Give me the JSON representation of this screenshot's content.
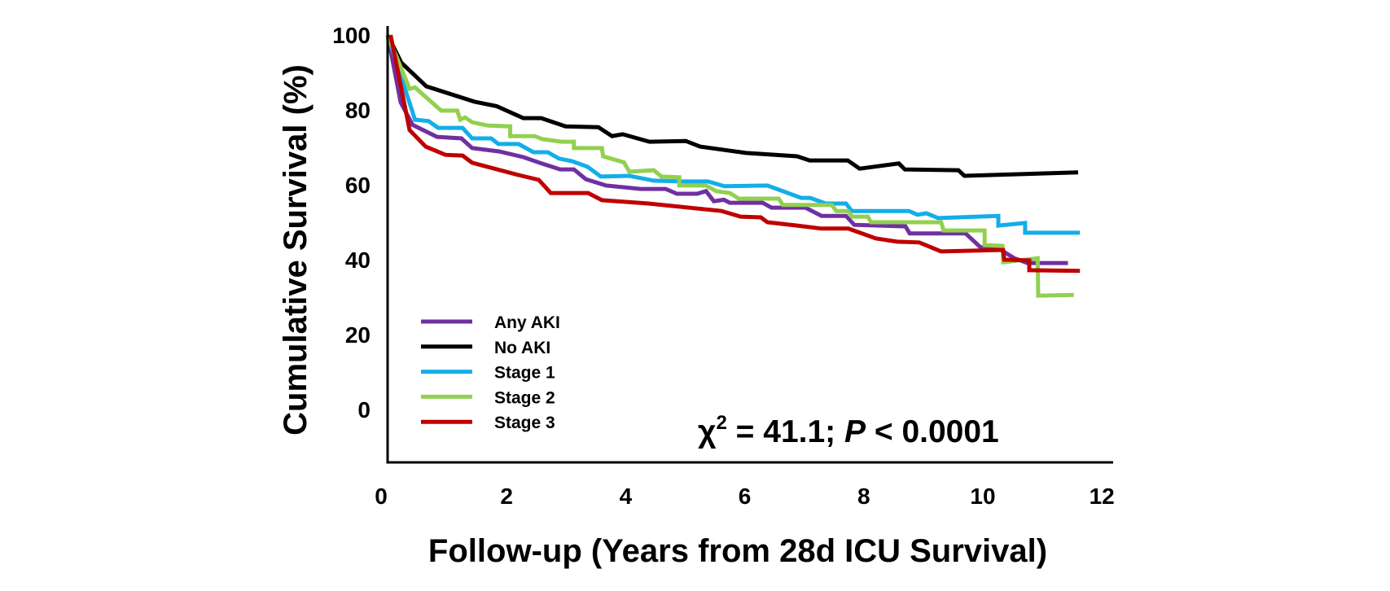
{
  "chart_data": {
    "type": "line",
    "title": "",
    "xlabel": "Follow-up (Years from 28d ICU Survival)",
    "ylabel": "Cumulative Survival (%)",
    "xlim": [
      0,
      12.2
    ],
    "ylim": [
      -14,
      102
    ],
    "x_ticks": [
      0,
      2,
      4,
      6,
      8,
      10,
      12
    ],
    "x_tick_labels": [
      "0",
      "2",
      "4",
      "6",
      "8",
      "10",
      "12"
    ],
    "y_ticks": [
      0,
      20,
      40,
      60,
      80,
      100
    ],
    "y_tick_labels": [
      "0",
      "20",
      "40",
      "60",
      "80",
      "100"
    ],
    "grid": false,
    "legend_position": "bottom-left",
    "annotation": {
      "chi_symbol": "χ",
      "superscript": "2",
      "stat_text": " = 41.1; ",
      "p_symbol": "P",
      "p_text": " < 0.0001"
    },
    "series": [
      {
        "name": "Any AKI",
        "color": "#7030a0",
        "points": [
          [
            0.0,
            100
          ],
          [
            0.22,
            82
          ],
          [
            0.42,
            76
          ],
          [
            0.83,
            72.8
          ],
          [
            1.24,
            72.4
          ],
          [
            1.42,
            69.8
          ],
          [
            1.88,
            68.9
          ],
          [
            2.28,
            67.4
          ],
          [
            2.55,
            65.9
          ],
          [
            2.9,
            64.1
          ],
          [
            3.13,
            64.1
          ],
          [
            3.33,
            61.5
          ],
          [
            3.67,
            59.8
          ],
          [
            4.25,
            58.9
          ],
          [
            4.67,
            58.9
          ],
          [
            4.86,
            57.6
          ],
          [
            5.2,
            57.6
          ],
          [
            5.35,
            58.3
          ],
          [
            5.48,
            55.6
          ],
          [
            5.65,
            56
          ],
          [
            5.75,
            55.2
          ],
          [
            6.3,
            55.2
          ],
          [
            6.45,
            53.9
          ],
          [
            7.02,
            53.9
          ],
          [
            7.29,
            51.7
          ],
          [
            7.7,
            51.7
          ],
          [
            7.84,
            49.3
          ],
          [
            8.7,
            48.9
          ],
          [
            8.77,
            47
          ],
          [
            9.71,
            47
          ],
          [
            9.96,
            43.3
          ],
          [
            10.23,
            43.3
          ],
          [
            10.53,
            40.4
          ],
          [
            10.75,
            39.1
          ],
          [
            11.43,
            39.1
          ]
        ]
      },
      {
        "name": "No AKI",
        "color": "#000000",
        "points": [
          [
            0.0,
            100
          ],
          [
            0.23,
            92.6
          ],
          [
            0.65,
            86.3
          ],
          [
            1.46,
            82.2
          ],
          [
            1.83,
            81
          ],
          [
            2.28,
            77.8
          ],
          [
            2.58,
            77.8
          ],
          [
            2.99,
            75.6
          ],
          [
            3.54,
            75.4
          ],
          [
            3.77,
            73
          ],
          [
            3.95,
            73.5
          ],
          [
            4.4,
            71.5
          ],
          [
            5.01,
            71.7
          ],
          [
            5.25,
            70.2
          ],
          [
            6.02,
            68.5
          ],
          [
            6.88,
            67.6
          ],
          [
            7.09,
            66.5
          ],
          [
            7.73,
            66.5
          ],
          [
            7.93,
            64.3
          ],
          [
            8.59,
            65.7
          ],
          [
            8.69,
            64.1
          ],
          [
            9.59,
            63.9
          ],
          [
            9.69,
            62.4
          ],
          [
            11.6,
            63.3
          ]
        ]
      },
      {
        "name": "Stage 1",
        "color": "#13aee8",
        "points": [
          [
            0.0,
            100
          ],
          [
            0.46,
            77.4
          ],
          [
            0.69,
            77
          ],
          [
            0.85,
            75.2
          ],
          [
            1.26,
            75.2
          ],
          [
            1.42,
            72.4
          ],
          [
            1.74,
            72.4
          ],
          [
            1.86,
            70.9
          ],
          [
            2.2,
            70.9
          ],
          [
            2.45,
            68.7
          ],
          [
            2.69,
            68.7
          ],
          [
            2.88,
            67
          ],
          [
            3.1,
            66.3
          ],
          [
            3.36,
            64.8
          ],
          [
            3.58,
            62.2
          ],
          [
            4.06,
            62.4
          ],
          [
            4.47,
            61.1
          ],
          [
            4.93,
            60.9
          ],
          [
            5.38,
            60.9
          ],
          [
            5.66,
            59.6
          ],
          [
            6.38,
            59.8
          ],
          [
            6.95,
            56.5
          ],
          [
            7.1,
            56.5
          ],
          [
            7.36,
            55
          ],
          [
            7.7,
            55
          ],
          [
            7.8,
            53
          ],
          [
            8.76,
            53
          ],
          [
            8.9,
            52
          ],
          [
            9.05,
            52.4
          ],
          [
            9.25,
            51.1
          ],
          [
            10.26,
            51.7
          ],
          [
            10.26,
            49.1
          ],
          [
            10.71,
            49.8
          ],
          [
            10.71,
            47.2
          ],
          [
            11.63,
            47.2
          ]
        ]
      },
      {
        "name": "Stage 2",
        "color": "#92d050",
        "points": [
          [
            0.0,
            100
          ],
          [
            0.37,
            85.6
          ],
          [
            0.46,
            86
          ],
          [
            0.9,
            79.8
          ],
          [
            1.17,
            79.8
          ],
          [
            1.22,
            77.4
          ],
          [
            1.3,
            78
          ],
          [
            1.42,
            76.7
          ],
          [
            1.69,
            75.8
          ],
          [
            2.06,
            75.6
          ],
          [
            2.06,
            73
          ],
          [
            2.47,
            73
          ],
          [
            2.6,
            72.2
          ],
          [
            2.92,
            71.5
          ],
          [
            3.13,
            71.5
          ],
          [
            3.13,
            69.8
          ],
          [
            3.6,
            69.8
          ],
          [
            3.62,
            67.6
          ],
          [
            3.97,
            66
          ],
          [
            4.06,
            63.5
          ],
          [
            4.47,
            63.9
          ],
          [
            4.6,
            62.2
          ],
          [
            4.9,
            62
          ],
          [
            4.9,
            59.8
          ],
          [
            5.35,
            59.8
          ],
          [
            5.52,
            58.3
          ],
          [
            5.75,
            57.8
          ],
          [
            5.9,
            56.3
          ],
          [
            6.57,
            56.3
          ],
          [
            6.64,
            54.6
          ],
          [
            7.46,
            54.6
          ],
          [
            7.54,
            53
          ],
          [
            7.73,
            53
          ],
          [
            7.81,
            51.5
          ],
          [
            8.07,
            51.5
          ],
          [
            8.12,
            50
          ],
          [
            9.3,
            50
          ],
          [
            9.34,
            47.8
          ],
          [
            10.03,
            47.8
          ],
          [
            10.03,
            43.9
          ],
          [
            10.33,
            43.7
          ],
          [
            10.34,
            39.3
          ],
          [
            10.92,
            40.4
          ],
          [
            10.93,
            30.4
          ],
          [
            11.53,
            30.6
          ]
        ]
      },
      {
        "name": "Stage 3",
        "color": "#c00000",
        "points": [
          [
            0.05,
            100
          ],
          [
            0.37,
            74.6
          ],
          [
            0.64,
            70.2
          ],
          [
            0.97,
            68
          ],
          [
            1.26,
            67.8
          ],
          [
            1.42,
            65.9
          ],
          [
            2.2,
            62.6
          ],
          [
            2.54,
            61.3
          ],
          [
            2.74,
            57.8
          ],
          [
            3.37,
            57.8
          ],
          [
            3.6,
            55.9
          ],
          [
            4.38,
            55
          ],
          [
            5.61,
            53
          ],
          [
            5.93,
            51.5
          ],
          [
            6.27,
            51.3
          ],
          [
            6.38,
            50
          ],
          [
            6.88,
            49.1
          ],
          [
            7.29,
            48.3
          ],
          [
            7.74,
            48.3
          ],
          [
            8.2,
            45.7
          ],
          [
            8.56,
            44.8
          ],
          [
            8.93,
            44.6
          ],
          [
            9.3,
            42.2
          ],
          [
            10.34,
            42.6
          ],
          [
            10.36,
            40
          ],
          [
            10.78,
            39.8
          ],
          [
            10.78,
            37.2
          ],
          [
            11.63,
            37
          ]
        ]
      }
    ]
  }
}
